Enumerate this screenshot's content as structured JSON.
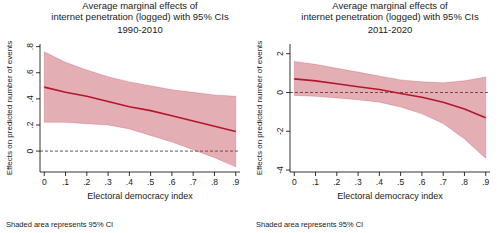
{
  "chart_data": [
    {
      "type": "line",
      "title": [
        "Average marginal effects of",
        "internet penetration (logged) with 95% CIs"
      ],
      "subtitle": "1990-2010",
      "x_label": "Electoral democracy index",
      "y_label": "Effects on predicted number of events",
      "note": "Shaded area represents 95% CI",
      "x": [
        0,
        0.1,
        0.2,
        0.3,
        0.4,
        0.5,
        0.6,
        0.7,
        0.8,
        0.9
      ],
      "series": [
        {
          "color": "#b2182b",
          "values": [
            0.49,
            0.45,
            0.42,
            0.38,
            0.34,
            0.31,
            0.27,
            0.23,
            0.19,
            0.15
          ],
          "lower": [
            0.22,
            0.22,
            0.21,
            0.2,
            0.17,
            0.12,
            0.07,
            0.01,
            -0.05,
            -0.12
          ],
          "upper": [
            0.76,
            0.68,
            0.62,
            0.57,
            0.53,
            0.5,
            0.47,
            0.45,
            0.43,
            0.42
          ]
        }
      ],
      "reference_lines": [
        {
          "y": 0,
          "line_style": "dashed"
        }
      ],
      "xlim": [
        -0.02,
        0.92
      ],
      "xticks": [
        0,
        {
          "value": 0.1,
          "label": ".1"
        },
        {
          "value": 0.2,
          "label": ".2"
        },
        {
          "value": 0.3,
          "label": ".3"
        },
        {
          "value": 0.4,
          "label": ".4"
        },
        {
          "value": 0.5,
          "label": ".5"
        },
        {
          "value": 0.6,
          "label": ".6"
        },
        {
          "value": 0.7,
          "label": ".7"
        },
        {
          "value": 0.8,
          "label": ".8"
        },
        {
          "value": 0.9,
          "label": ".9"
        }
      ],
      "ylim": [
        -0.16,
        0.82
      ],
      "yticks": [
        0,
        {
          "value": 0.2,
          "label": ".2"
        },
        {
          "value": 0.4,
          "label": ".4"
        },
        {
          "value": 0.6,
          "label": ".6"
        },
        {
          "value": 0.8,
          "label": ".8"
        }
      ],
      "grid": false
    },
    {
      "type": "line",
      "title": [
        "Average marginal effects of",
        "internet penetration (logged) with 95% CIs"
      ],
      "subtitle": "2011-2020",
      "x_label": "Electoral democracy index",
      "y_label": "Effects on predicted number of events",
      "note": "Shaded area represents 95% CI",
      "x": [
        0,
        0.1,
        0.2,
        0.3,
        0.4,
        0.5,
        0.6,
        0.7,
        0.8,
        0.9
      ],
      "series": [
        {
          "color": "#b2182b",
          "values": [
            0.7,
            0.6,
            0.45,
            0.3,
            0.15,
            -0.05,
            -0.25,
            -0.5,
            -0.85,
            -1.3
          ],
          "lower": [
            -0.15,
            -0.2,
            -0.28,
            -0.38,
            -0.5,
            -0.75,
            -1.1,
            -1.6,
            -2.4,
            -3.4
          ],
          "upper": [
            1.6,
            1.45,
            1.25,
            1.05,
            0.85,
            0.65,
            0.55,
            0.5,
            0.6,
            0.8
          ]
        }
      ],
      "reference_lines": [
        {
          "y": 0,
          "line_style": "dashed"
        }
      ],
      "xlim": [
        -0.02,
        0.92
      ],
      "xticks": [
        0,
        {
          "value": 0.1,
          "label": ".1"
        },
        {
          "value": 0.2,
          "label": ".2"
        },
        {
          "value": 0.3,
          "label": ".3"
        },
        {
          "value": 0.4,
          "label": ".4"
        },
        {
          "value": 0.5,
          "label": ".5"
        },
        {
          "value": 0.6,
          "label": ".6"
        },
        {
          "value": 0.7,
          "label": ".7"
        },
        {
          "value": 0.8,
          "label": ".8"
        },
        {
          "value": 0.9,
          "label": ".9"
        }
      ],
      "ylim": [
        -4.1,
        2.5
      ],
      "yticks": [
        -4,
        -2,
        0,
        2
      ],
      "grid": false
    }
  ]
}
